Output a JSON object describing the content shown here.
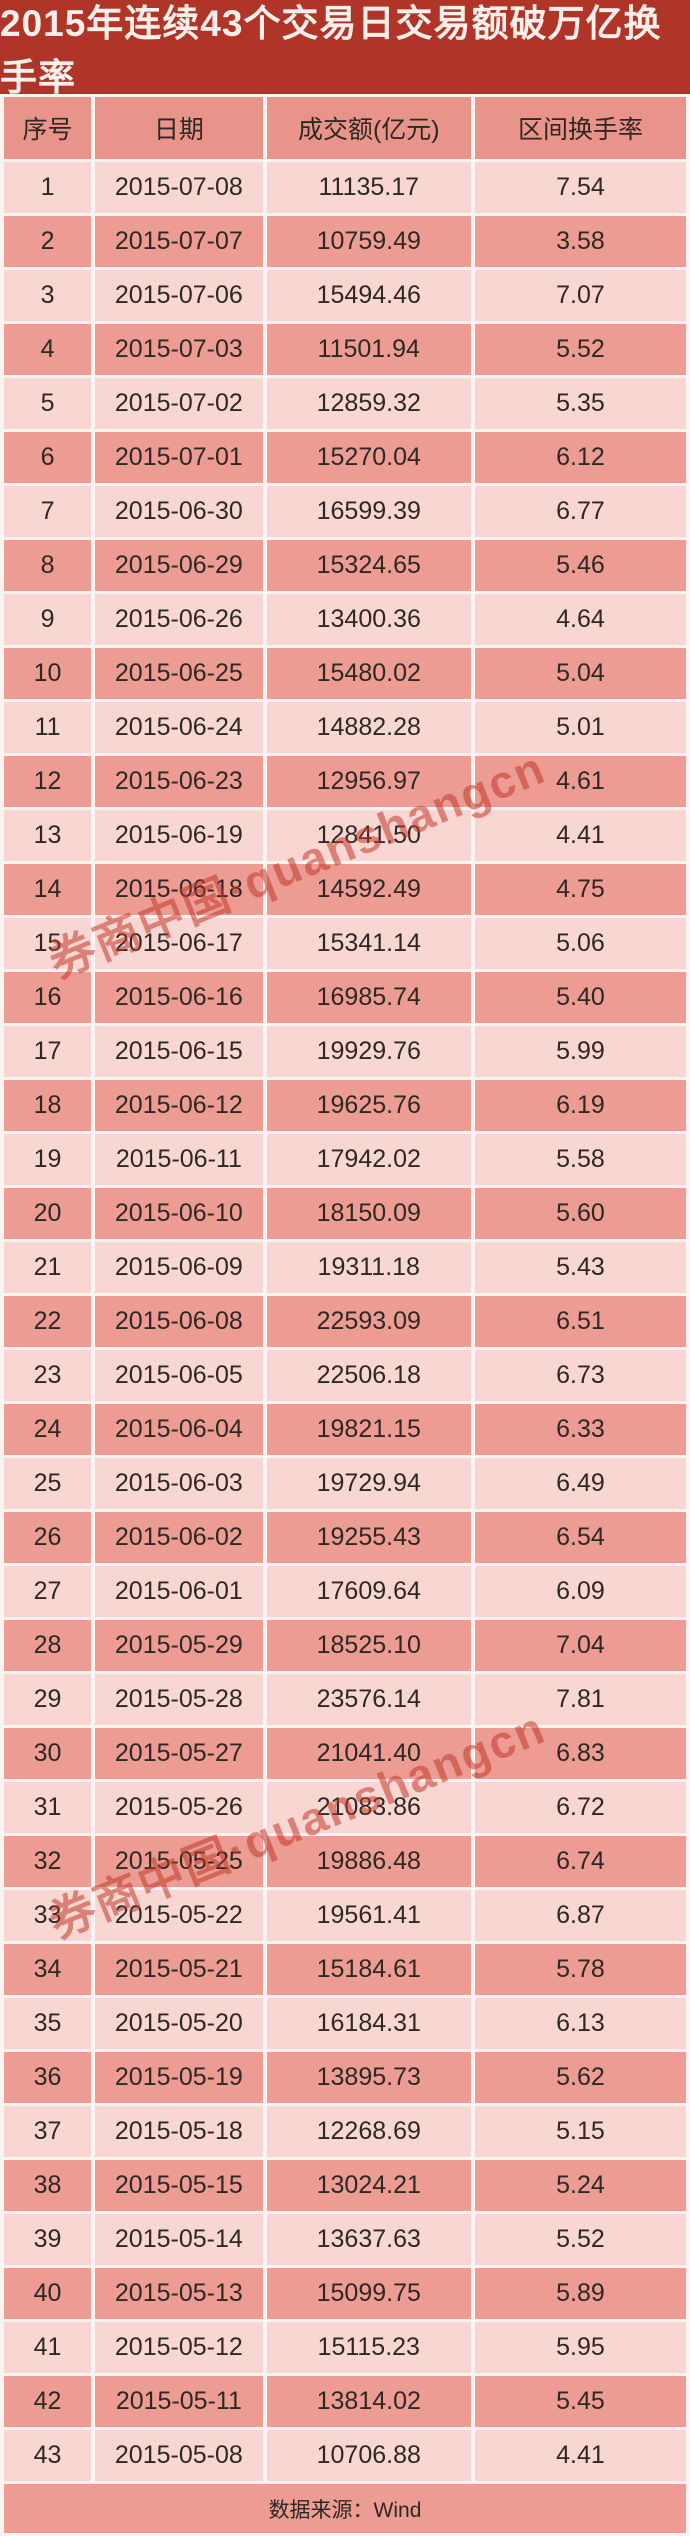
{
  "page": {
    "title": "2015年连续43个交易日交易额破万亿换手率",
    "source_note": "数据来源：Wind"
  },
  "watermark": {
    "text": "券商中国·quanshangcn"
  },
  "colors": {
    "title_bg": "#B13428",
    "title_text": "#F9F0EB",
    "header_bg": "#E9948B",
    "row_dark": "#EC9C92",
    "row_light": "#F8D7D2",
    "gap": "#FCF4F2",
    "text": "#2E2825",
    "watermark": "#C23A2B"
  },
  "chart_data": {
    "type": "table",
    "title": "2015年连续43个交易日交易额破万亿换手率",
    "columns": [
      "序号",
      "日期",
      "成交额(亿元)",
      "区间换手率"
    ],
    "field_names": [
      "seq",
      "date",
      "volume",
      "turnover"
    ],
    "source": "数据来源：Wind",
    "rows": [
      [
        "1",
        "2015-07-08",
        "11135.17",
        "7.54"
      ],
      [
        "2",
        "2015-07-07",
        "10759.49",
        "3.58"
      ],
      [
        "3",
        "2015-07-06",
        "15494.46",
        "7.07"
      ],
      [
        "4",
        "2015-07-03",
        "11501.94",
        "5.52"
      ],
      [
        "5",
        "2015-07-02",
        "12859.32",
        "5.35"
      ],
      [
        "6",
        "2015-07-01",
        "15270.04",
        "6.12"
      ],
      [
        "7",
        "2015-06-30",
        "16599.39",
        "6.77"
      ],
      [
        "8",
        "2015-06-29",
        "15324.65",
        "5.46"
      ],
      [
        "9",
        "2015-06-26",
        "13400.36",
        "4.64"
      ],
      [
        "10",
        "2015-06-25",
        "15480.02",
        "5.04"
      ],
      [
        "11",
        "2015-06-24",
        "14882.28",
        "5.01"
      ],
      [
        "12",
        "2015-06-23",
        "12956.97",
        "4.61"
      ],
      [
        "13",
        "2015-06-19",
        "12841.50",
        "4.41"
      ],
      [
        "14",
        "2015-06-18",
        "14592.49",
        "4.75"
      ],
      [
        "15",
        "2015-06-17",
        "15341.14",
        "5.06"
      ],
      [
        "16",
        "2015-06-16",
        "16985.74",
        "5.40"
      ],
      [
        "17",
        "2015-06-15",
        "19929.76",
        "5.99"
      ],
      [
        "18",
        "2015-06-12",
        "19625.76",
        "6.19"
      ],
      [
        "19",
        "2015-06-11",
        "17942.02",
        "5.58"
      ],
      [
        "20",
        "2015-06-10",
        "18150.09",
        "5.60"
      ],
      [
        "21",
        "2015-06-09",
        "19311.18",
        "5.43"
      ],
      [
        "22",
        "2015-06-08",
        "22593.09",
        "6.51"
      ],
      [
        "23",
        "2015-06-05",
        "22506.18",
        "6.73"
      ],
      [
        "24",
        "2015-06-04",
        "19821.15",
        "6.33"
      ],
      [
        "25",
        "2015-06-03",
        "19729.94",
        "6.49"
      ],
      [
        "26",
        "2015-06-02",
        "19255.43",
        "6.54"
      ],
      [
        "27",
        "2015-06-01",
        "17609.64",
        "6.09"
      ],
      [
        "28",
        "2015-05-29",
        "18525.10",
        "7.04"
      ],
      [
        "29",
        "2015-05-28",
        "23576.14",
        "7.81"
      ],
      [
        "30",
        "2015-05-27",
        "21041.40",
        "6.83"
      ],
      [
        "31",
        "2015-05-26",
        "21083.86",
        "6.72"
      ],
      [
        "32",
        "2015-05-25",
        "19886.48",
        "6.74"
      ],
      [
        "33",
        "2015-05-22",
        "19561.41",
        "6.87"
      ],
      [
        "34",
        "2015-05-21",
        "15184.61",
        "5.78"
      ],
      [
        "35",
        "2015-05-20",
        "16184.31",
        "6.13"
      ],
      [
        "36",
        "2015-05-19",
        "13895.73",
        "5.62"
      ],
      [
        "37",
        "2015-05-18",
        "12268.69",
        "5.15"
      ],
      [
        "38",
        "2015-05-15",
        "13024.21",
        "5.24"
      ],
      [
        "39",
        "2015-05-14",
        "13637.63",
        "5.52"
      ],
      [
        "40",
        "2015-05-13",
        "15099.75",
        "5.89"
      ],
      [
        "41",
        "2015-05-12",
        "15115.23",
        "5.95"
      ],
      [
        "42",
        "2015-05-11",
        "13814.02",
        "5.45"
      ],
      [
        "43",
        "2015-05-08",
        "10706.88",
        "4.41"
      ]
    ]
  }
}
